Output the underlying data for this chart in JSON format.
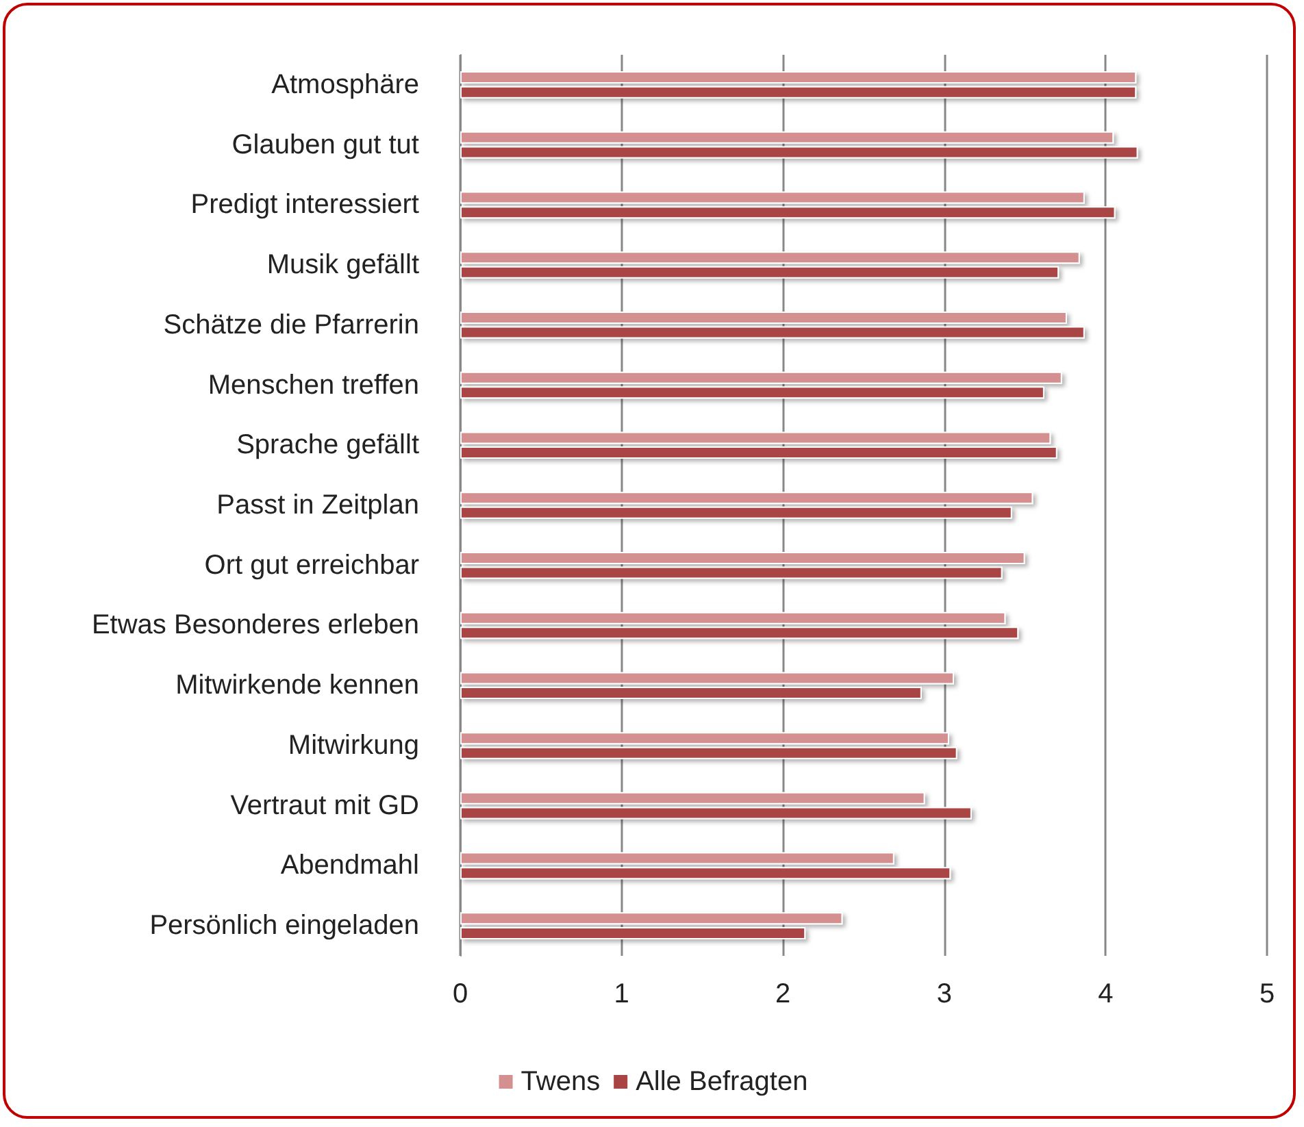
{
  "chart_data": {
    "type": "bar",
    "orientation": "horizontal",
    "categories": [
      "Atmosphäre",
      "Glauben gut tut",
      "Predigt interessiert",
      "Musik gefällt",
      "Schätze die Pfarrerin",
      "Menschen treffen",
      "Sprache gefällt",
      "Passt in Zeitplan",
      "Ort gut erreichbar",
      "Etwas Besonderes erleben",
      "Mitwirkende kennen",
      "Mitwirkung",
      "Vertraut mit GD",
      "Abendmahl",
      "Persönlich eingeladen"
    ],
    "series": [
      {
        "name": "Twens",
        "color": "#d49090",
        "values": [
          4.19,
          4.05,
          3.87,
          3.84,
          3.76,
          3.73,
          3.66,
          3.55,
          3.5,
          3.38,
          3.06,
          3.03,
          2.88,
          2.69,
          2.37
        ]
      },
      {
        "name": "Alle Befragten",
        "color": "#a94444",
        "values": [
          4.19,
          4.2,
          4.06,
          3.71,
          3.87,
          3.62,
          3.7,
          3.42,
          3.36,
          3.46,
          2.86,
          3.08,
          3.17,
          3.04,
          2.14
        ]
      }
    ],
    "xlim": [
      0,
      5
    ],
    "xticks": [
      0,
      1,
      2,
      3,
      4,
      5
    ],
    "grid": "x",
    "legend": "bottom"
  }
}
